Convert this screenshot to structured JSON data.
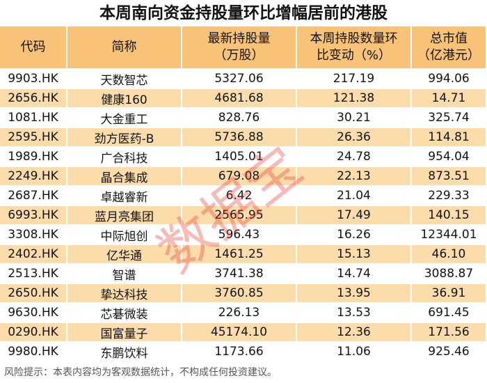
{
  "title": "本周南向资金持股量环比增幅居前的港股",
  "table": {
    "header": [
      [
        "代码"
      ],
      [
        "简称"
      ],
      [
        "最新持股量",
        "（万股）"
      ],
      [
        "本周持股数量环",
        "比变动（%）"
      ],
      [
        "总市值",
        "（亿港元）"
      ]
    ],
    "rows": [
      [
        "9903.HK",
        "天数智芯",
        "5327.06",
        "217.19",
        "994.06"
      ],
      [
        "2656.HK",
        "健康160",
        "4681.68",
        "121.38",
        "14.71"
      ],
      [
        "1081.HK",
        "大金重工",
        "828.76",
        "30.21",
        "325.74"
      ],
      [
        "2595.HK",
        "劲方医药-B",
        "5736.88",
        "26.36",
        "114.81"
      ],
      [
        "1989.HK",
        "广合科技",
        "1405.01",
        "24.78",
        "954.04"
      ],
      [
        "2249.HK",
        "晶合集成",
        "679.08",
        "22.13",
        "873.51"
      ],
      [
        "2687.HK",
        "卓越睿新",
        "6.42",
        "21.04",
        "229.33"
      ],
      [
        "6993.HK",
        "蓝月亮集团",
        "2565.95",
        "17.49",
        "140.15"
      ],
      [
        "3308.HK",
        "中际旭创",
        "596.43",
        "16.26",
        "12344.01"
      ],
      [
        "2402.HK",
        "亿华通",
        "1461.25",
        "15.13",
        "46.10"
      ],
      [
        "2513.HK",
        "智谱",
        "3741.38",
        "14.74",
        "3088.87"
      ],
      [
        "2650.HK",
        "挚达科技",
        "3760.85",
        "13.95",
        "36.91"
      ],
      [
        "9630.HK",
        "芯碁微装",
        "226.13",
        "13.53",
        "691.45"
      ],
      [
        "0290.HK",
        "国富量子",
        "45174.10",
        "12.36",
        "171.56"
      ],
      [
        "9980.HK",
        "东鹏饮料",
        "1173.66",
        "11.06",
        "925.46"
      ]
    ]
  },
  "footer": "风险提示：本表内容均为客观数据统计，不构成任何投资建议。",
  "watermark": "数据宝"
}
